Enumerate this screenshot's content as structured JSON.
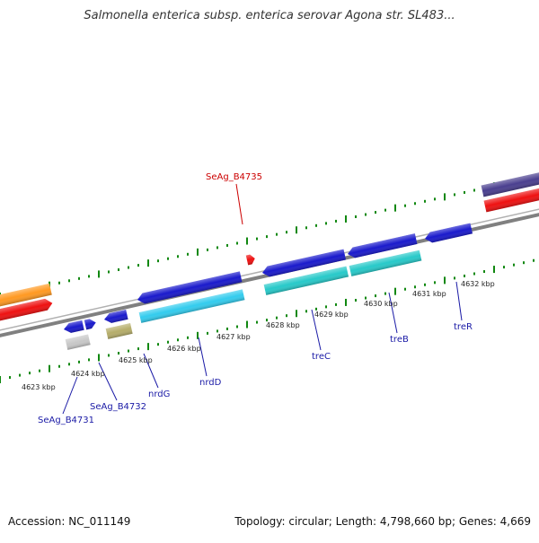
{
  "title": "Salmonella enterica subsp. enterica serovar Agona str. SL483...",
  "footer": {
    "accession": "Accession: NC_011149",
    "summary": "Topology: circular; Length: 4,798,660 bp; Genes: 4,669"
  },
  "colors": {
    "forward_cds": "#1a1acc",
    "reverse_cds": "#27c9c9",
    "gene_red": "#ee1111",
    "orange": "#ff9922",
    "purple": "#4a3f8f",
    "khaki": "#b5ad6a",
    "grey": "#c8c8c8",
    "light_blue": "#33ccee",
    "tick_green": "#118811",
    "backbone": "#808080"
  },
  "kbp_labels": [
    "4623 kbp",
    "4624 kbp",
    "4625 kbp",
    "4626 kbp",
    "4627 kbp",
    "4628 kbp",
    "4629 kbp",
    "4630 kbp",
    "4631 kbp",
    "4632 kbp"
  ],
  "gene_labels": [
    {
      "text": "SeAg_B4735",
      "color": "red"
    },
    {
      "text": "SeAg_B4731",
      "color": "blue"
    },
    {
      "text": "SeAg_B4732",
      "color": "blue"
    },
    {
      "text": "nrdG",
      "color": "blue"
    },
    {
      "text": "nrdD",
      "color": "blue"
    },
    {
      "text": "treC",
      "color": "blue"
    },
    {
      "text": "treB",
      "color": "blue"
    },
    {
      "text": "treR",
      "color": "blue"
    }
  ]
}
